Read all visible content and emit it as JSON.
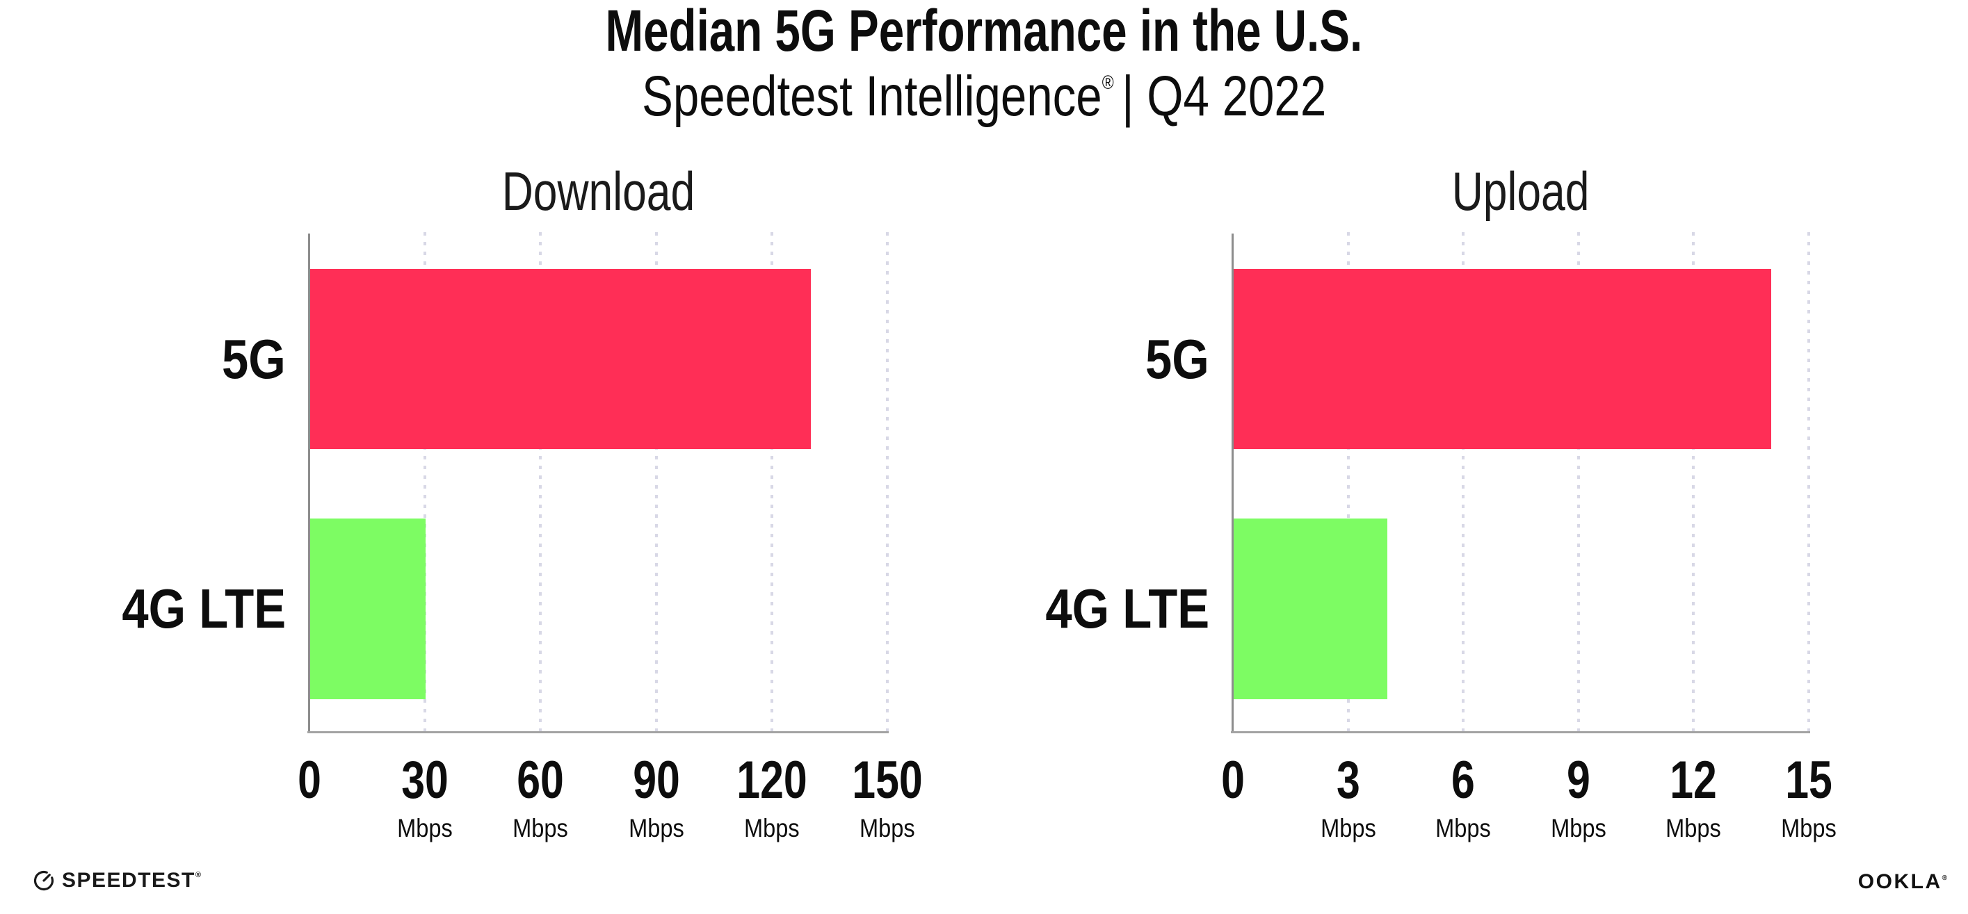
{
  "header": {
    "title": "Median 5G Performance in the U.S.",
    "subtitle_brand": "Speedtest Intelligence",
    "subtitle_registered": "®",
    "subtitle_rest": "| Q4 2022"
  },
  "chart_data": [
    {
      "type": "bar",
      "orientation": "horizontal",
      "title": "Download",
      "categories": [
        "5G",
        "4G LTE"
      ],
      "values": [
        130,
        30
      ],
      "unit": "Mbps",
      "xlabel": "",
      "ylabel": "",
      "xlim": [
        0,
        150
      ],
      "xticks": [
        0,
        30,
        60,
        90,
        120,
        150
      ],
      "bar_colors": [
        "#ff2e56",
        "#7dfc63"
      ],
      "grid": "vertical-dotted",
      "legend": "none"
    },
    {
      "type": "bar",
      "orientation": "horizontal",
      "title": "Upload",
      "categories": [
        "5G",
        "4G LTE"
      ],
      "values": [
        14,
        4
      ],
      "unit": "Mbps",
      "xlabel": "",
      "ylabel": "",
      "xlim": [
        0,
        15
      ],
      "xticks": [
        0,
        3,
        6,
        9,
        12,
        15
      ],
      "bar_colors": [
        "#ff2e56",
        "#7dfc63"
      ],
      "grid": "vertical-dotted",
      "legend": "none"
    }
  ],
  "footer": {
    "speedtest_label": "SPEEDTEST",
    "speedtest_mark": "®",
    "ookla_label": "OOKLA",
    "ookla_mark": "®"
  },
  "colors": {
    "bar_5g": "#ff2e56",
    "bar_4g_lte": "#7dfc63",
    "axis_line": "#9e9e9e",
    "gridline": "#d8d8e6",
    "text": "#0d0d0d"
  }
}
